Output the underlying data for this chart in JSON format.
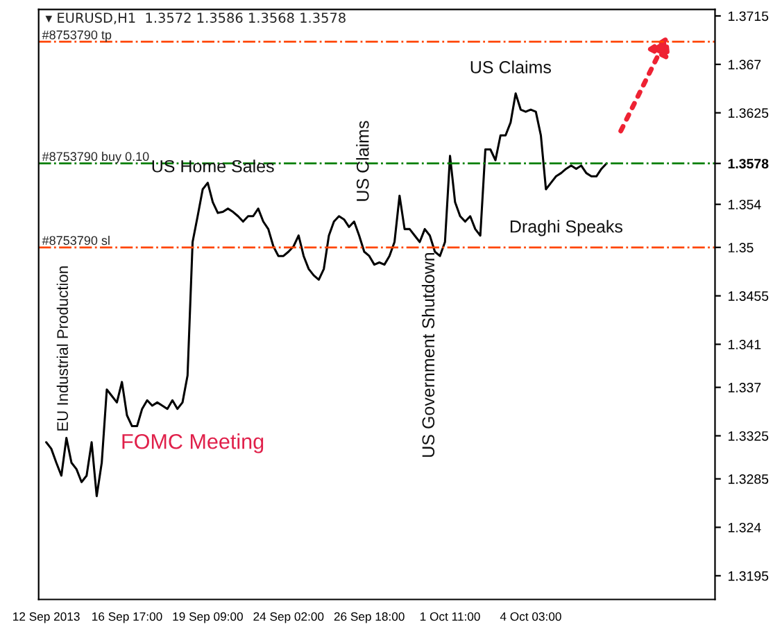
{
  "chart_data": {
    "type": "line",
    "title": "▾ EURUSD,H1  1.3572 1.3586 1.3568 1.3578",
    "categories": [
      "12 Sep 2013",
      null,
      null,
      null,
      null,
      null,
      null,
      null,
      null,
      null,
      null,
      null,
      null,
      null,
      null,
      null,
      "16 Sep 17:00",
      null,
      null,
      null,
      null,
      null,
      null,
      null,
      null,
      null,
      null,
      null,
      null,
      null,
      null,
      null,
      "19 Sep 09:00",
      null,
      null,
      null,
      null,
      null,
      null,
      null,
      null,
      null,
      null,
      null,
      null,
      null,
      null,
      null,
      "24 Sep 02:00",
      null,
      null,
      null,
      null,
      null,
      null,
      null,
      null,
      null,
      null,
      null,
      null,
      null,
      null,
      null,
      "26 Sep 18:00",
      null,
      null,
      null,
      null,
      null,
      null,
      null,
      null,
      null,
      null,
      null,
      null,
      null,
      null,
      null,
      "1 Oct 11:00",
      null,
      null,
      null,
      null,
      null,
      null,
      null,
      null,
      null,
      null,
      null,
      null,
      null,
      null,
      null,
      "4 Oct 03:00",
      null,
      null,
      null,
      null,
      null,
      null,
      null,
      null,
      null,
      null,
      null,
      null,
      null,
      null,
      null,
      null,
      null,
      null,
      null,
      null,
      null,
      null,
      null,
      null,
      null,
      null,
      null,
      null,
      null,
      null,
      null,
      null,
      null,
      null,
      null,
      null
    ],
    "series": [
      {
        "color": "#000000",
        "values": [
          1.3319,
          1.3313,
          1.33,
          1.3288,
          1.3323,
          1.33,
          1.3294,
          1.3282,
          1.3288,
          1.3319,
          1.3269,
          1.33,
          1.3368,
          1.3362,
          1.3356,
          1.3375,
          1.3344,
          1.3334,
          1.3334,
          1.335,
          1.3358,
          1.3353,
          1.3356,
          1.3353,
          1.335,
          1.3358,
          1.335,
          1.3356,
          1.3381,
          1.3505,
          1.3529,
          1.3554,
          1.356,
          1.3542,
          1.3532,
          1.3533,
          1.3536,
          1.3533,
          1.3529,
          1.3524,
          1.3529,
          1.3529,
          1.3536,
          1.3524,
          1.3517,
          1.3501,
          1.3492,
          1.3492,
          1.3496,
          1.3501,
          1.3511,
          1.3492,
          1.348,
          1.3474,
          1.347,
          1.348,
          1.3511,
          1.3524,
          1.3529,
          1.3526,
          1.3519,
          1.3524,
          1.3511,
          1.3496,
          1.3492,
          1.3484,
          1.3486,
          1.3484,
          1.3492,
          1.3505,
          1.3548,
          1.3517,
          1.3517,
          1.3511,
          1.3505,
          1.3517,
          1.3511,
          1.3496,
          1.3492,
          1.3505,
          1.3585,
          1.3542,
          1.3529,
          1.3524,
          1.3529,
          1.3517,
          1.3511,
          1.3591,
          1.3591,
          1.3581,
          1.3604,
          1.3604,
          1.3616,
          1.3643,
          1.3628,
          1.3626,
          1.3628,
          1.3626,
          1.3604,
          1.3554,
          1.356,
          1.3566,
          1.3569,
          1.3573,
          1.3576,
          1.3573,
          1.3576,
          1.3569,
          1.3566,
          1.3566,
          1.3573,
          1.3578,
          null,
          null,
          null,
          null,
          null,
          null,
          null,
          null,
          null,
          null,
          null,
          null,
          null,
          null,
          null,
          null,
          null,
          null,
          null,
          null,
          null
        ]
      }
    ],
    "ylim": [
      1.3173,
      1.3721
    ],
    "yticks": [
      1.3195,
      1.324,
      1.3285,
      1.3325,
      1.337,
      1.341,
      1.3455,
      1.35,
      1.354,
      {
        "value": 1.3578,
        "label": "1.3578"
      },
      1.3625,
      1.367,
      1.3715
    ],
    "ref_lines": [
      {
        "axis": "y",
        "value": 1.3691,
        "label": "#8753790 tp",
        "color": "#ff4500",
        "line_style": "dashdot"
      },
      {
        "axis": "y",
        "value": 1.3578,
        "label": "#8753790 buy 0.10",
        "color": "#008000",
        "line_style": "dashdot"
      },
      {
        "axis": "y",
        "value": 1.35,
        "label": "#8753790 sl",
        "color": "#ff4500",
        "line_style": "dashdot"
      }
    ],
    "annotations": [
      "EU Industrial Production",
      "FOMC Meeting",
      "US Home Sales",
      "US Claims",
      "US Government Shutdown",
      "US Claims",
      "Draghi Speaks"
    ],
    "legend": false,
    "grid": false
  }
}
